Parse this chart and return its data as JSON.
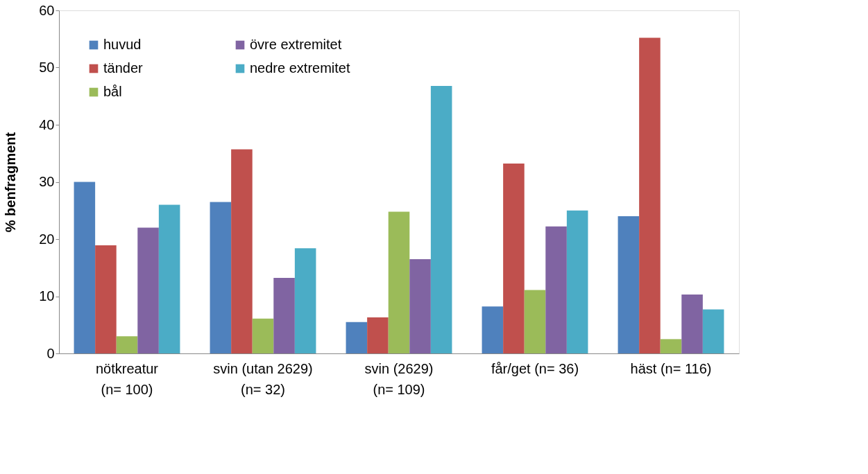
{
  "chart_data": {
    "type": "bar",
    "ylabel": "% benfragment",
    "categories": [
      "nötkreatur\n(n= 100)",
      "svin (utan 2629)\n(n= 32)",
      "svin (2629)\n(n= 109)",
      "får/get (n= 36)",
      "häst (n= 116)"
    ],
    "series": [
      {
        "name": "huvud",
        "color": "#4f81bd",
        "values": [
          30.0,
          26.5,
          5.5,
          8.2,
          24.0
        ]
      },
      {
        "name": "tänder",
        "color": "#c0504d",
        "values": [
          18.9,
          35.7,
          6.3,
          33.2,
          55.2
        ]
      },
      {
        "name": "bål",
        "color": "#9bbb59",
        "values": [
          3.0,
          6.1,
          24.8,
          11.1,
          2.5
        ]
      },
      {
        "name": "övre extremitet",
        "color": "#8064a2",
        "values": [
          22.0,
          13.2,
          16.5,
          22.2,
          10.3
        ]
      },
      {
        "name": "nedre extremitet",
        "color": "#4bacc6",
        "values": [
          26.0,
          18.4,
          46.8,
          25.0,
          7.7
        ]
      }
    ],
    "ylim": [
      0,
      60
    ],
    "yticks": [
      0,
      10,
      20,
      30,
      40,
      50,
      60
    ],
    "grid": false,
    "legend": "top left"
  }
}
